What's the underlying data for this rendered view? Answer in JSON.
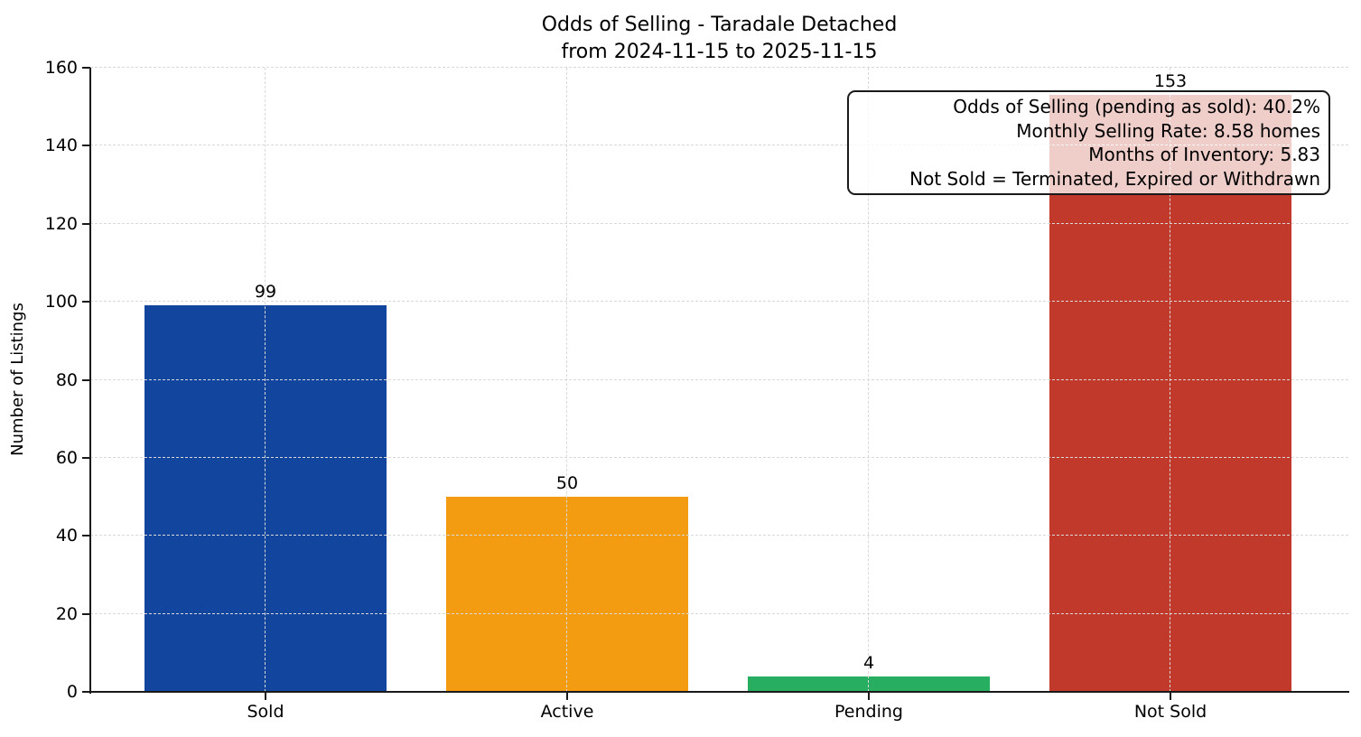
{
  "chart_data": {
    "type": "bar",
    "title": "Odds of Selling - Taradale Detached",
    "subtitle": "from 2024-11-15 to 2025-11-15",
    "categories": [
      "Sold",
      "Active",
      "Pending",
      "Not Sold"
    ],
    "values": [
      99,
      50,
      4,
      153
    ],
    "bar_colors": [
      "#11459e",
      "#f39c12",
      "#27ae60",
      "#c0392b"
    ],
    "xlabel": "",
    "ylabel": "Number of Listings",
    "ylim": [
      0,
      160
    ],
    "yticks": [
      0,
      20,
      40,
      60,
      80,
      100,
      120,
      140,
      160
    ],
    "grid": {
      "visible": true,
      "style": "dashed",
      "axes": "both",
      "color": "#d9d9d9"
    },
    "legend_position": "none",
    "bar_value_labels": [
      "99",
      "50",
      "4",
      "153"
    ],
    "annotation": {
      "lines": [
        "Odds of Selling (pending as sold): 40.2%",
        "Monthly Selling Rate: 8.58 homes",
        "Months of Inventory: 5.83",
        "Not Sold = Terminated, Expired or Withdrawn"
      ]
    }
  },
  "colors": {
    "spine": "#1a1a1a",
    "background": "#ffffff",
    "text": "#000000"
  }
}
